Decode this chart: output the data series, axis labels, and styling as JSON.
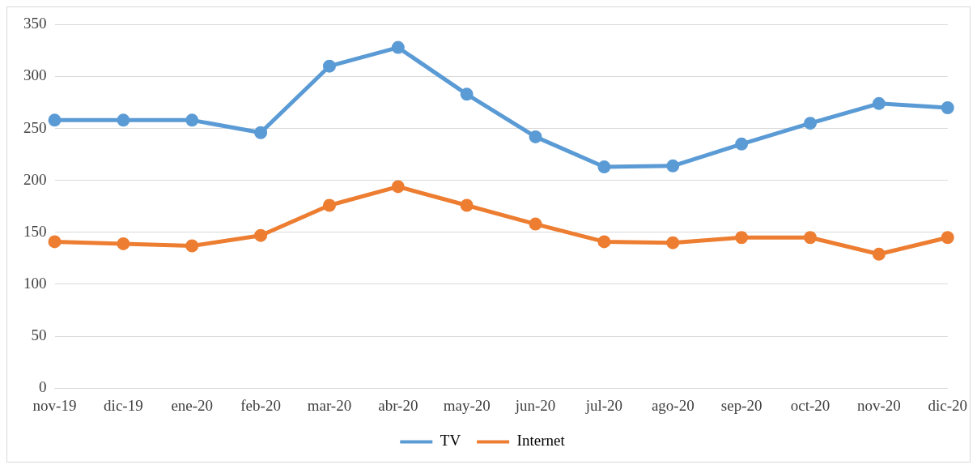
{
  "chart_data": {
    "type": "line",
    "categories": [
      "nov-19",
      "dic-19",
      "ene-20",
      "feb-20",
      "mar-20",
      "abr-20",
      "may-20",
      "jun-20",
      "jul-20",
      "ago-20",
      "sep-20",
      "oct-20",
      "nov-20",
      "dic-20"
    ],
    "series": [
      {
        "name": "TV",
        "color": "#5b9bd5",
        "values": [
          258,
          258,
          258,
          246,
          310,
          328,
          283,
          242,
          213,
          214,
          235,
          255,
          274,
          270
        ]
      },
      {
        "name": "Internet",
        "color": "#ed7d31",
        "values": [
          141,
          139,
          137,
          147,
          176,
          194,
          176,
          158,
          141,
          140,
          145,
          145,
          129,
          145
        ]
      }
    ],
    "ylim": [
      0,
      350
    ],
    "yticks": [
      0,
      50,
      100,
      150,
      200,
      250,
      300,
      350
    ],
    "grid": "y",
    "legend": "bottom",
    "marker": "circle",
    "line_style": "solid"
  }
}
